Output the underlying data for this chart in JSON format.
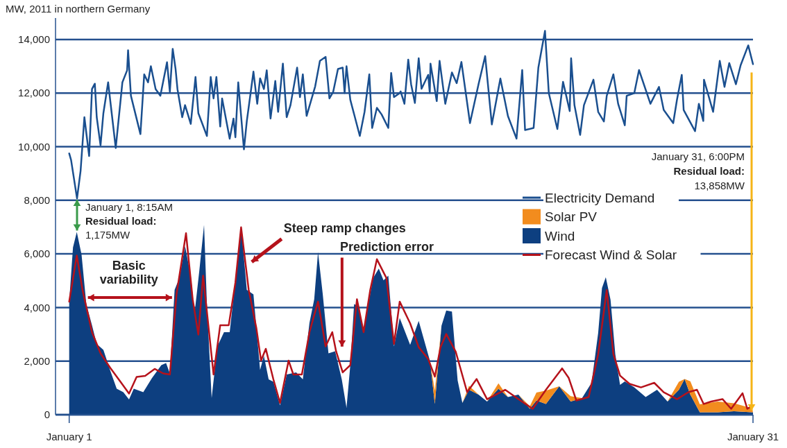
{
  "chart_data": {
    "type": "line",
    "title": "MW, 2011 in northern Germany",
    "xlim": [
      "2010-12-31T09:36",
      "2011-01-31T00:00"
    ],
    "xticks": [
      {
        "value": "2011-01-01",
        "label": "January 1"
      },
      {
        "value": "2011-01-31",
        "label": "January 31"
      }
    ],
    "ylim": [
      0,
      14800
    ],
    "yticks": [
      0,
      {
        "value": 2000,
        "label": "2,000"
      },
      {
        "value": 4000,
        "label": "4,000"
      },
      {
        "value": 6000,
        "label": "6,000"
      },
      {
        "value": 8000,
        "label": "8,000"
      },
      {
        "value": 10000,
        "label": "10,000"
      },
      {
        "value": 12000,
        "label": "12,000"
      },
      {
        "value": 14000,
        "label": "14,000"
      }
    ],
    "grid": "y",
    "legend": "right",
    "stacked": true,
    "series": [
      {
        "name": "Electricity Demand",
        "color": "#1a4f8f",
        "x": [
          "2011-01-01T00:00",
          "2011-01-01T02:00",
          "2011-01-01T08:15",
          "2011-01-01T12:00",
          "2011-01-01T16:00",
          "2011-01-01T21:00",
          "2011-01-02T00:00",
          "2011-01-02T03:00",
          "2011-01-02T05:00",
          "2011-01-02T09:00",
          "2011-01-02T12:00",
          "2011-01-02T17:00",
          "2011-01-03T01:00",
          "2011-01-03T08:00",
          "2011-01-03T13:00",
          "2011-01-03T14:00",
          "2011-01-03T17:00",
          "2011-01-04T03:00",
          "2011-01-04T07:00",
          "2011-01-04T11:00",
          "2011-01-04T14:00",
          "2011-01-04T19:00",
          "2011-01-05T00:00",
          "2011-01-05T07:00",
          "2011-01-05T10:00",
          "2011-01-05T13:00",
          "2011-01-05T16:00",
          "2011-01-05T18:00",
          "2011-01-05T23:00",
          "2011-01-06T02:00",
          "2011-01-06T08:00",
          "2011-01-06T13:00",
          "2011-01-06T16:00",
          "2011-01-07T01:00",
          "2011-01-07T05:00",
          "2011-01-07T08:00",
          "2011-01-07T11:00",
          "2011-01-07T15:00",
          "2011-01-07T17:00",
          "2011-01-08T01:00",
          "2011-01-08T05:00",
          "2011-01-08T07:00",
          "2011-01-08T10:00",
          "2011-01-08T16:00",
          "2011-01-08T19:00",
          "2011-01-08T23:00",
          "2011-01-09T02:00",
          "2011-01-09T06:00",
          "2011-01-09T09:00",
          "2011-01-09T13:00",
          "2011-01-09T16:00",
          "2011-01-09T20:00",
          "2011-01-10T01:00",
          "2011-01-10T04:00",
          "2011-01-10T09:00",
          "2011-01-10T13:00",
          "2011-01-10T17:00",
          "2011-01-11T00:00",
          "2011-01-11T03:00",
          "2011-01-11T06:00",
          "2011-01-11T10:00",
          "2011-01-11T19:00",
          "2011-01-12T00:00",
          "2011-01-12T06:00",
          "2011-01-12T10:00",
          "2011-01-12T14:00",
          "2011-01-12T19:00",
          "2011-01-13T00:00",
          "2011-01-13T02:00",
          "2011-01-13T04:00",
          "2011-01-13T08:00",
          "2011-01-13T18:00",
          "2011-01-13T23:00",
          "2011-01-14T04:00",
          "2011-01-14T07:00",
          "2011-01-14T12:00",
          "2011-01-14T17:00",
          "2011-01-15T00:00",
          "2011-01-15T03:00",
          "2011-01-15T06:00",
          "2011-01-15T12:00",
          "2011-01-15T13:00",
          "2011-01-15T17:00",
          "2011-01-15T21:00",
          "2011-01-16T00:00",
          "2011-01-16T04:00",
          "2011-01-16T08:00",
          "2011-01-16T11:00",
          "2011-01-16T18:00",
          "2011-01-16T19:40",
          "2011-01-16T20:25",
          "2011-01-17T03:00",
          "2011-01-17T06:00",
          "2011-01-17T12:00",
          "2011-01-17T19:00",
          "2011-01-18T00:00",
          "2011-01-18T05:00",
          "2011-01-18T14:00",
          "2011-01-18T23:00",
          "2011-01-19T06:00",
          "2011-01-19T13:00",
          "2011-01-19T22:00",
          "2011-01-20T06:00",
          "2011-01-20T15:00",
          "2011-01-20T21:00",
          "2011-01-21T00:00",
          "2011-01-21T09:00",
          "2011-01-21T14:00",
          "2011-01-21T21:00",
          "2011-01-22T01:00",
          "2011-01-22T10:00",
          "2011-01-22T16:00",
          "2011-01-22T23:02",
          "2011-01-23T00:29",
          "2011-01-23T04:00",
          "2011-01-23T10:00",
          "2011-01-23T14:00",
          "2011-01-24T00:00",
          "2011-01-24T05:00",
          "2011-01-24T11:00",
          "2011-01-24T14:00",
          "2011-01-24T21:00",
          "2011-01-25T02:00",
          "2011-01-25T09:00",
          "2011-01-25T11:00",
          "2011-01-25T19:00",
          "2011-01-26T00:00",
          "2011-01-26T12:00",
          "2011-01-26T21:00",
          "2011-01-27T02:00",
          "2011-01-27T12:00",
          "2011-01-27T16:00",
          "2011-01-27T21:00",
          "2011-01-27T23:00",
          "2011-01-28T11:00",
          "2011-01-28T15:00",
          "2011-01-28T19:41",
          "2011-01-28T20:24",
          "2011-01-29T06:00",
          "2011-01-29T13:00",
          "2011-01-29T18:00",
          "2011-01-29T23:00",
          "2011-01-30T06:00",
          "2011-01-30T11:00",
          "2011-01-30T19:00",
          "2011-01-31T00:00"
        ],
        "values": [
          9750,
          9500,
          8070,
          9100,
          11100,
          9650,
          12150,
          12350,
          11100,
          10050,
          11250,
          12400,
          9950,
          12400,
          12850,
          13600,
          11900,
          10470,
          12700,
          12400,
          13000,
          12150,
          11900,
          13150,
          12050,
          13650,
          12900,
          12150,
          11100,
          11550,
          10850,
          12600,
          11250,
          10400,
          12600,
          11800,
          12600,
          10750,
          11800,
          10300,
          11050,
          10350,
          12400,
          9900,
          10950,
          12000,
          12800,
          11600,
          12550,
          12150,
          12850,
          11050,
          12450,
          11300,
          13100,
          11100,
          11550,
          12950,
          11850,
          12700,
          11150,
          12250,
          13200,
          13350,
          11800,
          12050,
          12900,
          12950,
          12000,
          13000,
          11750,
          10400,
          11300,
          12700,
          10700,
          11450,
          11200,
          10700,
          12750,
          11850,
          12000,
          12060,
          11600,
          13250,
          12330,
          11630,
          13300,
          12160,
          12680,
          12000,
          13100,
          11700,
          13200,
          11600,
          12770,
          12370,
          13160,
          10880,
          12330,
          13380,
          10830,
          12540,
          11140,
          10300,
          12860,
          10620,
          10700,
          12950,
          14320,
          12000,
          10660,
          12420,
          11330,
          13300,
          11550,
          10440,
          11550,
          12500,
          11300,
          10940,
          11900,
          12700,
          11600,
          10800,
          11900,
          12000,
          12860,
          11600,
          12230,
          11370,
          10880,
          11760,
          12680,
          11370,
          10580,
          11600,
          10960,
          12500,
          11300,
          13200,
          12230,
          13120,
          12330,
          13040,
          13780,
          13080
        ]
      },
      {
        "name": "Wind",
        "type": "area",
        "color": "#0d3f80",
        "x": [
          "2011-01-01T00:00",
          "2011-01-01T04:00",
          "2011-01-01T08:00",
          "2011-01-01T13:00",
          "2011-01-01T18:00",
          "2011-01-02T00:00",
          "2011-01-02T05:00",
          "2011-01-02T12:00",
          "2011-01-02T19:00",
          "2011-01-03T02:00",
          "2011-01-03T09:00",
          "2011-01-03T15:00",
          "2011-01-03T20:00",
          "2011-01-04T06:00",
          "2011-01-04T15:00",
          "2011-01-05T01:00",
          "2011-01-05T06:00",
          "2011-01-05T10:00",
          "2011-01-05T15:00",
          "2011-01-05T20:00",
          "2011-01-06T02:00",
          "2011-01-06T08:00",
          "2011-01-06T12:00",
          "2011-01-06T17:00",
          "2011-01-06T22:00",
          "2011-01-07T01:00",
          "2011-01-07T06:00",
          "2011-01-07T12:00",
          "2011-01-07T19:00",
          "2011-01-08T01:00",
          "2011-01-08T07:00",
          "2011-01-08T13:00",
          "2011-01-08T19:00",
          "2011-01-09T02:00",
          "2011-01-09T09:00",
          "2011-01-09T13:00",
          "2011-01-09T18:00",
          "2011-01-09T23:00",
          "2011-01-10T06:00",
          "2011-01-10T13:00",
          "2011-01-10T23:00",
          "2011-01-11T06:00",
          "2011-01-11T13:00",
          "2011-01-11T18:00",
          "2011-01-11T22:00",
          "2011-01-12T03:00",
          "2011-01-12T09:00",
          "2011-01-12T16:00",
          "2011-01-12T23:00",
          "2011-01-13T04:00",
          "2011-01-13T08:00",
          "2011-01-13T12:00",
          "2011-01-13T17:00",
          "2011-01-13T22:00",
          "2011-01-14T03:00",
          "2011-01-14T08:00",
          "2011-01-14T14:00",
          "2011-01-14T19:00",
          "2011-01-15T00:00",
          "2011-01-15T06:00",
          "2011-01-15T12:00",
          "2011-01-15T23:00",
          "2011-01-16T08:00",
          "2011-01-16T20:00",
          "2011-01-17T01:00",
          "2011-01-17T08:00",
          "2011-01-17T13:00",
          "2011-01-17T19:00",
          "2011-01-18T01:00",
          "2011-01-18T06:00",
          "2011-01-18T13:00",
          "2011-01-18T23:00",
          "2011-01-19T08:00",
          "2011-01-19T20:00",
          "2011-01-20T06:00",
          "2011-01-20T17:00",
          "2011-01-21T05:00",
          "2011-01-21T12:00",
          "2011-01-21T22:00",
          "2011-01-22T12:00",
          "2011-01-23T00:00",
          "2011-01-23T12:00",
          "2011-01-23T22:00",
          "2011-01-24T05:00",
          "2011-01-24T09:00",
          "2011-01-24T13:00",
          "2011-01-24T18:00",
          "2011-01-24T23:00",
          "2011-01-25T04:00",
          "2011-01-25T09:00",
          "2011-01-25T19:00",
          "2011-01-26T07:00",
          "2011-01-26T19:00",
          "2011-01-27T06:00",
          "2011-01-27T18:00",
          "2011-01-28T00:00",
          "2011-01-28T06:00",
          "2011-01-28T16:00",
          "2011-01-29T11:00",
          "2011-01-30T04:00",
          "2011-01-30T23:00",
          "2011-01-31T00:00"
        ],
        "values": [
          4220,
          6240,
          6820,
          5980,
          4130,
          3340,
          2640,
          2420,
          1670,
          970,
          840,
          570,
          970,
          840,
          1360,
          1850,
          1930,
          1540,
          4660,
          5100,
          6290,
          5190,
          3780,
          5370,
          7080,
          4130,
          620,
          2550,
          3080,
          3080,
          5010,
          7040,
          4660,
          4490,
          1670,
          2200,
          1320,
          1230,
          350,
          1500,
          1580,
          1320,
          3430,
          4310,
          6070,
          4490,
          2290,
          2370,
          1320,
          260,
          1850,
          4130,
          4050,
          3080,
          4130,
          5100,
          5450,
          5010,
          5190,
          2550,
          3610,
          2610,
          3500,
          1990,
          400,
          3320,
          3890,
          3850,
          1280,
          440,
          930,
          750,
          490,
          970,
          660,
          750,
          220,
          530,
          400,
          1060,
          490,
          620,
          1190,
          3050,
          4730,
          5130,
          4290,
          2260,
          1110,
          1240,
          1020,
          660,
          930,
          490,
          930,
          1330,
          750,
          90,
          90,
          130,
          90,
          90
        ]
      },
      {
        "name": "Solar PV",
        "type": "area",
        "color": "#f28c1e",
        "x": [
          "2011-01-01T00:00",
          "2011-01-01T04:00",
          "2011-01-01T08:00",
          "2011-01-01T13:00",
          "2011-01-01T18:00",
          "2011-01-02T00:00",
          "2011-01-02T05:00",
          "2011-01-02T12:00",
          "2011-01-02T19:00",
          "2011-01-03T02:00",
          "2011-01-03T09:00",
          "2011-01-03T15:00",
          "2011-01-03T20:00",
          "2011-01-04T06:00",
          "2011-01-04T15:00",
          "2011-01-05T01:00",
          "2011-01-05T06:00",
          "2011-01-05T10:00",
          "2011-01-05T15:00",
          "2011-01-05T20:00",
          "2011-01-06T02:00",
          "2011-01-06T08:00",
          "2011-01-06T12:00",
          "2011-01-06T17:00",
          "2011-01-06T22:00",
          "2011-01-07T01:00",
          "2011-01-07T06:00",
          "2011-01-07T12:00",
          "2011-01-07T19:00",
          "2011-01-08T01:00",
          "2011-01-08T07:00",
          "2011-01-08T13:00",
          "2011-01-08T19:00",
          "2011-01-09T02:00",
          "2011-01-09T09:00",
          "2011-01-09T13:00",
          "2011-01-09T18:00",
          "2011-01-09T23:00",
          "2011-01-10T06:00",
          "2011-01-10T13:00",
          "2011-01-10T23:00",
          "2011-01-11T06:00",
          "2011-01-11T13:00",
          "2011-01-11T18:00",
          "2011-01-11T22:00",
          "2011-01-12T03:00",
          "2011-01-12T09:00",
          "2011-01-12T16:00",
          "2011-01-12T23:00",
          "2011-01-13T04:00",
          "2011-01-13T08:00",
          "2011-01-13T12:00",
          "2011-01-13T17:00",
          "2011-01-13T22:00",
          "2011-01-14T03:00",
          "2011-01-14T08:00",
          "2011-01-14T14:00",
          "2011-01-14T19:00",
          "2011-01-15T00:00",
          "2011-01-15T06:00",
          "2011-01-15T12:00",
          "2011-01-15T23:00",
          "2011-01-16T08:00",
          "2011-01-16T20:00",
          "2011-01-17T01:00",
          "2011-01-17T08:00",
          "2011-01-17T13:00",
          "2011-01-17T19:00",
          "2011-01-18T01:00",
          "2011-01-18T06:00",
          "2011-01-18T13:00",
          "2011-01-18T23:00",
          "2011-01-19T08:00",
          "2011-01-19T20:00",
          "2011-01-20T06:00",
          "2011-01-20T17:00",
          "2011-01-21T05:00",
          "2011-01-21T12:00",
          "2011-01-21T22:00",
          "2011-01-22T12:00",
          "2011-01-23T00:00",
          "2011-01-23T12:00",
          "2011-01-23T22:00",
          "2011-01-24T05:00",
          "2011-01-24T09:00",
          "2011-01-24T13:00",
          "2011-01-24T18:00",
          "2011-01-24T23:00",
          "2011-01-25T04:00",
          "2011-01-25T09:00",
          "2011-01-25T19:00",
          "2011-01-26T07:00",
          "2011-01-26T19:00",
          "2011-01-27T06:00",
          "2011-01-27T18:00",
          "2011-01-28T00:00",
          "2011-01-28T06:00",
          "2011-01-28T16:00",
          "2011-01-29T11:00",
          "2011-01-30T04:00",
          "2011-01-30T23:00",
          "2011-01-31T00:00"
        ],
        "values": [
          0,
          0,
          0,
          0,
          0,
          0,
          0,
          0,
          0,
          0,
          0,
          0,
          0,
          0,
          0,
          0,
          0,
          0,
          0,
          0,
          0,
          0,
          0,
          0,
          0,
          0,
          0,
          0,
          0,
          0,
          0,
          0,
          0,
          0,
          0,
          0,
          0,
          0,
          0,
          0,
          0,
          0,
          0,
          0,
          0,
          0,
          0,
          0,
          0,
          0,
          0,
          0,
          0,
          0,
          0,
          0,
          0,
          0,
          0,
          0,
          0,
          0,
          0,
          0,
          500,
          0,
          0,
          0,
          0,
          0,
          150,
          0,
          0,
          200,
          0,
          0,
          100,
          300,
          500,
          0,
          200,
          0,
          0,
          0,
          0,
          0,
          0,
          0,
          0,
          0,
          0,
          0,
          0,
          0,
          300,
          0,
          500,
          300,
          400,
          300,
          150,
          0
        ]
      },
      {
        "name": "Forecast Wind & Solar",
        "color": "#b5121b",
        "x": [
          "2011-01-01T00:00",
          "2011-01-01T08:00",
          "2011-01-01T14:00",
          "2011-01-02T00:00",
          "2011-01-02T09:00",
          "2011-01-02T19:00",
          "2011-01-03T06:00",
          "2011-01-03T15:00",
          "2011-01-03T23:00",
          "2011-01-04T08:00",
          "2011-01-04T18:00",
          "2011-01-05T03:00",
          "2011-01-05T10:00",
          "2011-01-05T17:00",
          "2011-01-06T03:00",
          "2011-01-06T10:00",
          "2011-01-06T16:00",
          "2011-01-06T21:00",
          "2011-01-07T03:00",
          "2011-01-07T08:00",
          "2011-01-07T15:00",
          "2011-01-08T00:00",
          "2011-01-08T07:00",
          "2011-01-08T13:00",
          "2011-01-08T21:00",
          "2011-01-09T05:00",
          "2011-01-09T10:00",
          "2011-01-09T15:00",
          "2011-01-09T23:00",
          "2011-01-10T06:00",
          "2011-01-10T15:00",
          "2011-01-10T20:00",
          "2011-01-11T05:00",
          "2011-01-11T13:00",
          "2011-01-11T22:00",
          "2011-01-12T06:00",
          "2011-01-12T13:00",
          "2011-01-12T17:00",
          "2011-01-13T00:00",
          "2011-01-13T08:00",
          "2011-01-13T15:00",
          "2011-01-13T22:00",
          "2011-01-14T05:00",
          "2011-01-14T12:00",
          "2011-01-14T22:00",
          "2011-01-15T06:00",
          "2011-01-15T12:00",
          "2011-01-15T23:00",
          "2011-01-16T08:00",
          "2011-01-16T18:00",
          "2011-01-17T01:00",
          "2011-01-17T07:00",
          "2011-01-17T13:00",
          "2011-01-17T23:00",
          "2011-01-18T11:00",
          "2011-01-18T21:00",
          "2011-01-19T08:00",
          "2011-01-20T03:00",
          "2011-01-20T17:00",
          "2011-01-21T08:00",
          "2011-01-21T22:00",
          "2011-01-22T15:00",
          "2011-01-22T22:00",
          "2011-01-23T06:00",
          "2011-01-23T19:00",
          "2011-01-24T05:00",
          "2011-01-24T14:00",
          "2011-01-24T21:00",
          "2011-01-25T04:00",
          "2011-01-25T14:00",
          "2011-01-26T02:00",
          "2011-01-26T16:00",
          "2011-01-27T02:00",
          "2011-01-27T16:00",
          "2011-01-28T04:00",
          "2011-01-28T13:00",
          "2011-01-28T20:00",
          "2011-01-29T04:00",
          "2011-01-29T16:00",
          "2011-01-30T01:00",
          "2011-01-30T13:00",
          "2011-01-30T18:00",
          "2011-01-31T00:00"
        ],
        "values": [
          4220,
          5940,
          4660,
          3080,
          2290,
          1760,
          1230,
          790,
          1410,
          1450,
          1710,
          1540,
          1500,
          4490,
          6770,
          4310,
          2990,
          5190,
          3170,
          1500,
          3340,
          3340,
          4930,
          6990,
          4660,
          3250,
          2020,
          2460,
          1320,
          440,
          2020,
          1500,
          1500,
          3080,
          4220,
          2550,
          3080,
          2370,
          1580,
          1850,
          4310,
          3080,
          4660,
          5800,
          5100,
          2640,
          4220,
          3410,
          2520,
          2080,
          1420,
          2520,
          3010,
          2350,
          840,
          1330,
          580,
          930,
          580,
          220,
          930,
          1730,
          1370,
          530,
          660,
          2260,
          4650,
          2260,
          1460,
          1150,
          1020,
          1190,
          840,
          580,
          840,
          930,
          400,
          490,
          580,
          220,
          800,
          220,
          350
        ]
      }
    ],
    "annotations": [
      {
        "text": "January 1, 8:15AM\nResidual load:\n1,175MW",
        "x": "2011-01-01T08:15",
        "y": 8070
      },
      "January 31, 6:00PM\nResidual load:\n13,858MW",
      "Basic\nvariability",
      "Steep ramp changes",
      "Prediction error"
    ]
  }
}
